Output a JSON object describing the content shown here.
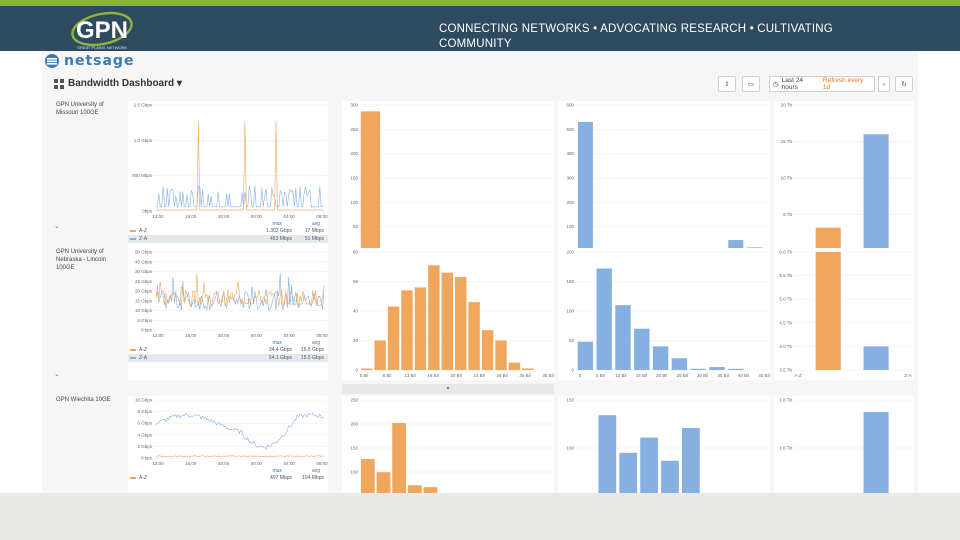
{
  "header": {
    "tagline": "CONNECTING NETWORKS • ADVOCATING RESEARCH • CULTIVATING COMMUNITY",
    "logo_text": "GPN",
    "logo_subtext": "GREAT PLAINS NETWORK",
    "brand_green": "#8ab33f",
    "brand_navy": "#2e4a5f"
  },
  "app": {
    "logo_text": "netsage",
    "dashboard_title": "Bandwidth Dashboard",
    "time_range": "Last 24 hours",
    "refresh": "Refresh every 1d",
    "icons": [
      "grid-icon",
      "share-icon",
      "monitor-icon",
      "clock-icon",
      "refresh-icon"
    ]
  },
  "rows": [
    {
      "label": "GPN University of Missouri 100GE",
      "ts": {
        "y_ticks": [
          "1.5 Gbps",
          "1.0 Gbps",
          "500 Mbps",
          "0bps"
        ],
        "x_ticks": [
          "12:00",
          "16:00",
          "20:00",
          "00:00",
          "04:00",
          "08:00"
        ],
        "legend": [
          {
            "name": "A-Z",
            "max": "1.302 Gbps",
            "avg": "17 Mbps"
          },
          {
            "name": "Z-A",
            "max": "453 Mbps",
            "avg": "51 Mbps"
          }
        ],
        "max_label": "max",
        "avg_label": "avg"
      },
      "hist1": {
        "y_ticks": [
          "300",
          "250",
          "200",
          "150",
          "100",
          "50",
          "0"
        ],
        "x_ticks": [
          "0",
          "200 Mil",
          "400 Mil",
          "600 Mil",
          "800 Mil",
          "1.0 Bil",
          "1.2 Bil",
          "1.4 Bil"
        ],
        "values": [
          287,
          0,
          0,
          0,
          0,
          0,
          0,
          1
        ]
      },
      "hist2": {
        "y_ticks": [
          "600",
          "500",
          "400",
          "300",
          "200",
          "100",
          "0"
        ],
        "x_ticks": [
          "0",
          "100 Mil",
          "200 Mil",
          "300 Mil",
          "400 Mil",
          "500 Mil"
        ],
        "values": [
          530,
          0,
          0,
          0,
          0,
          0,
          0,
          0,
          45,
          15
        ]
      },
      "totals": {
        "y_ticks": [
          "20 Tb",
          "15 Tb",
          "10 Tb",
          "5 Tb",
          "0 b"
        ],
        "x_ticks": [
          "A-Z",
          "Z-A"
        ],
        "values": [
          3.2,
          16
        ]
      }
    },
    {
      "label": "GPN University of Nebraska - Lincoln 100GE",
      "ts": {
        "y_ticks": [
          "50 Gbps",
          "40 Gbps",
          "30 Gbps",
          "25 Gbps",
          "20 Gbps",
          "15 Gbps",
          "10 Gbps",
          "5 Gbps",
          "0 bps"
        ],
        "x_ticks": [
          "12:00",
          "16:00",
          "20:00",
          "00:00",
          "04:00",
          "08:00"
        ],
        "legend": [
          {
            "name": "A-Z",
            "max": "34.4 Gbps",
            "avg": "16.5 Gbps"
          },
          {
            "name": "Z-A",
            "max": "54.1 Gbps",
            "avg": "15.5 Gbps"
          }
        ],
        "max_label": "max",
        "avg_label": "avg"
      },
      "hist1": {
        "y_ticks": [
          "80",
          "60",
          "40",
          "20",
          "0"
        ],
        "x_ticks": [
          "5 Bil",
          "8 Bil",
          "13 Bil",
          "16 Bil",
          "20 Bil",
          "23 Bil",
          "26 Bil",
          "30 Bil",
          "35 Bil"
        ],
        "values": [
          1,
          20,
          43,
          54,
          56,
          71,
          66,
          63,
          46,
          27,
          20,
          5,
          1
        ]
      },
      "hist2": {
        "y_ticks": [
          "200",
          "150",
          "100",
          "50",
          "0"
        ],
        "x_ticks": [
          "0",
          "5 Bil",
          "10 Bil",
          "15 Bil",
          "20 Bil",
          "25 Bil",
          "30 Bil",
          "35 Bil",
          "40 Bil",
          "45 Bil"
        ],
        "values": [
          48,
          172,
          110,
          70,
          40,
          20,
          2,
          5,
          2
        ]
      },
      "totals": {
        "y_ticks": [
          "6.0 Tb",
          "5.5 Tb",
          "5.0 Tb",
          "4.5 Tb",
          "4.0 Tb",
          "3.5 Tb"
        ],
        "x_ticks": [
          "A-Z",
          "Z-A"
        ],
        "values": [
          6.0,
          4.0
        ]
      }
    },
    {
      "label": "GPN Wiechita 10GE",
      "ts": {
        "y_ticks": [
          "10 Gbps",
          "8 Gbps",
          "6 Gbps",
          "4 Gbps",
          "2 Gbps",
          "0 bps"
        ],
        "x_ticks": [
          "12:00",
          "16:00",
          "20:00",
          "00:00",
          "04:00",
          "08:00"
        ],
        "legend": [
          {
            "name": "A-Z",
            "max": "497 Mbps",
            "avg": "104 Mbps"
          }
        ],
        "max_label": "max",
        "avg_label": "avg"
      },
      "hist1": {
        "y_ticks": [
          "250",
          "200",
          "150",
          "100",
          "50"
        ],
        "values": [
          96,
          62,
          190,
          28,
          23,
          8,
          2
        ]
      },
      "hist2": {
        "y_ticks": [
          "150",
          "100",
          "50"
        ],
        "values": [
          20,
          131,
          84,
          103,
          74,
          115,
          20
        ]
      },
      "totals": {
        "y_ticks": [
          "1.8 Tb",
          "1.6 Tb",
          "1.4 Tb"
        ],
        "values": [
          0,
          1.75
        ]
      }
    }
  ]
}
